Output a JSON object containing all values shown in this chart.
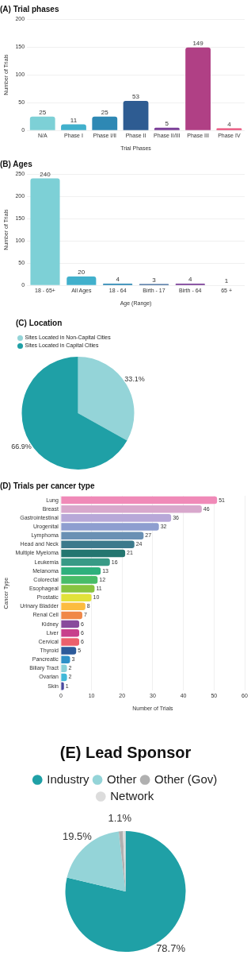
{
  "chart_data": [
    {
      "type": "bar",
      "title": "(A) Trial phases",
      "xlabel": "Trial Phases",
      "ylabel": "Number of Trials",
      "categories": [
        "N/A",
        "Phase I",
        "Phase I/II",
        "Phase II",
        "Phase II/III",
        "Phase III",
        "Phase IV"
      ],
      "values": [
        25,
        11,
        25,
        53,
        5,
        149,
        4
      ],
      "colors": [
        "#7dd0d6",
        "#41b0cc",
        "#2e88b4",
        "#2e5c92",
        "#7b3f98",
        "#b04085",
        "#e8507a"
      ],
      "ylim": [
        0,
        200
      ],
      "yticks": [
        0,
        50,
        100,
        150,
        200
      ],
      "grid": "y",
      "data_labels": true
    },
    {
      "type": "bar",
      "title": "(B) Ages",
      "xlabel": "Age (Range)",
      "ylabel": "Number of Trials",
      "categories": [
        "18 - 65+",
        "All Ages",
        "18 - 64",
        "Birth - 17",
        "Birth - 64",
        "65 +"
      ],
      "values": [
        240,
        20,
        4,
        3,
        4,
        1
      ],
      "colors": [
        "#7dd0d6",
        "#41b0cc",
        "#2e88b4",
        "#2e5c92",
        "#7b3f98",
        "#d070a8"
      ],
      "ylim": [
        0,
        250
      ],
      "yticks": [
        0,
        50,
        100,
        150,
        200,
        250
      ],
      "grid": "y",
      "data_labels": true
    },
    {
      "type": "pie",
      "title": "(C) Location",
      "categories": [
        "Sites Located in Non-Capital Cities",
        "Sites Located in Capital Cities"
      ],
      "values": [
        33.1,
        66.9
      ],
      "colors": [
        "#94d4d8",
        "#1fa0a6"
      ],
      "legend": "top left",
      "value_labels": [
        "33.1%",
        "66.9%"
      ]
    },
    {
      "type": "bar",
      "orientation": "horizontal",
      "title": "(D) Trials per cancer type",
      "xlabel": "Number of Trials",
      "ylabel": "Cancer Type",
      "categories": [
        "Lung",
        "Breast",
        "Gastrointestinal",
        "Urogenital",
        "Lymphoma",
        "Head and Neck",
        "Multiple Myeloma",
        "Leukemia",
        "Melanoma",
        "Colorectal",
        "Esophageal",
        "Prostatic",
        "Urinary Bladder",
        "Renal Cell",
        "Kidney",
        "Liver",
        "Cervical",
        "Thyroid",
        "Pancreatic",
        "Biliary Tract",
        "Ovarian",
        "Skin"
      ],
      "values": [
        51,
        46,
        36,
        32,
        27,
        24,
        21,
        16,
        13,
        12,
        11,
        10,
        8,
        7,
        6,
        6,
        6,
        5,
        3,
        2,
        2,
        1
      ],
      "colors": [
        "#f08ab8",
        "#d8a8cc",
        "#b8a8d8",
        "#8e9ed0",
        "#6a90b4",
        "#3c7a8c",
        "#247670",
        "#389a86",
        "#2eb07c",
        "#48bc68",
        "#88c440",
        "#e2e23a",
        "#fcbc40",
        "#f08848",
        "#884a9c",
        "#c8408c",
        "#ec606c",
        "#2c5a9a",
        "#2e90c8",
        "#88d0d8",
        "#40b8d8",
        "#4a4aa0"
      ],
      "xlim": [
        0,
        60
      ],
      "xticks": [
        0,
        10,
        20,
        30,
        40,
        50,
        60
      ],
      "grid": "x",
      "data_labels": true
    },
    {
      "type": "pie",
      "title": "(E) Lead Sponsor",
      "categories": [
        "Industry",
        "Other",
        "Other (Gov)",
        "Network"
      ],
      "values": [
        78.7,
        19.5,
        1.1,
        0.7
      ],
      "colors": [
        "#1fa0a6",
        "#94d4d8",
        "#b0b0b0",
        "#dcdcdc"
      ],
      "legend": "top",
      "value_labels": [
        "78.7%",
        "19.5%",
        "1.1%",
        null
      ]
    }
  ]
}
